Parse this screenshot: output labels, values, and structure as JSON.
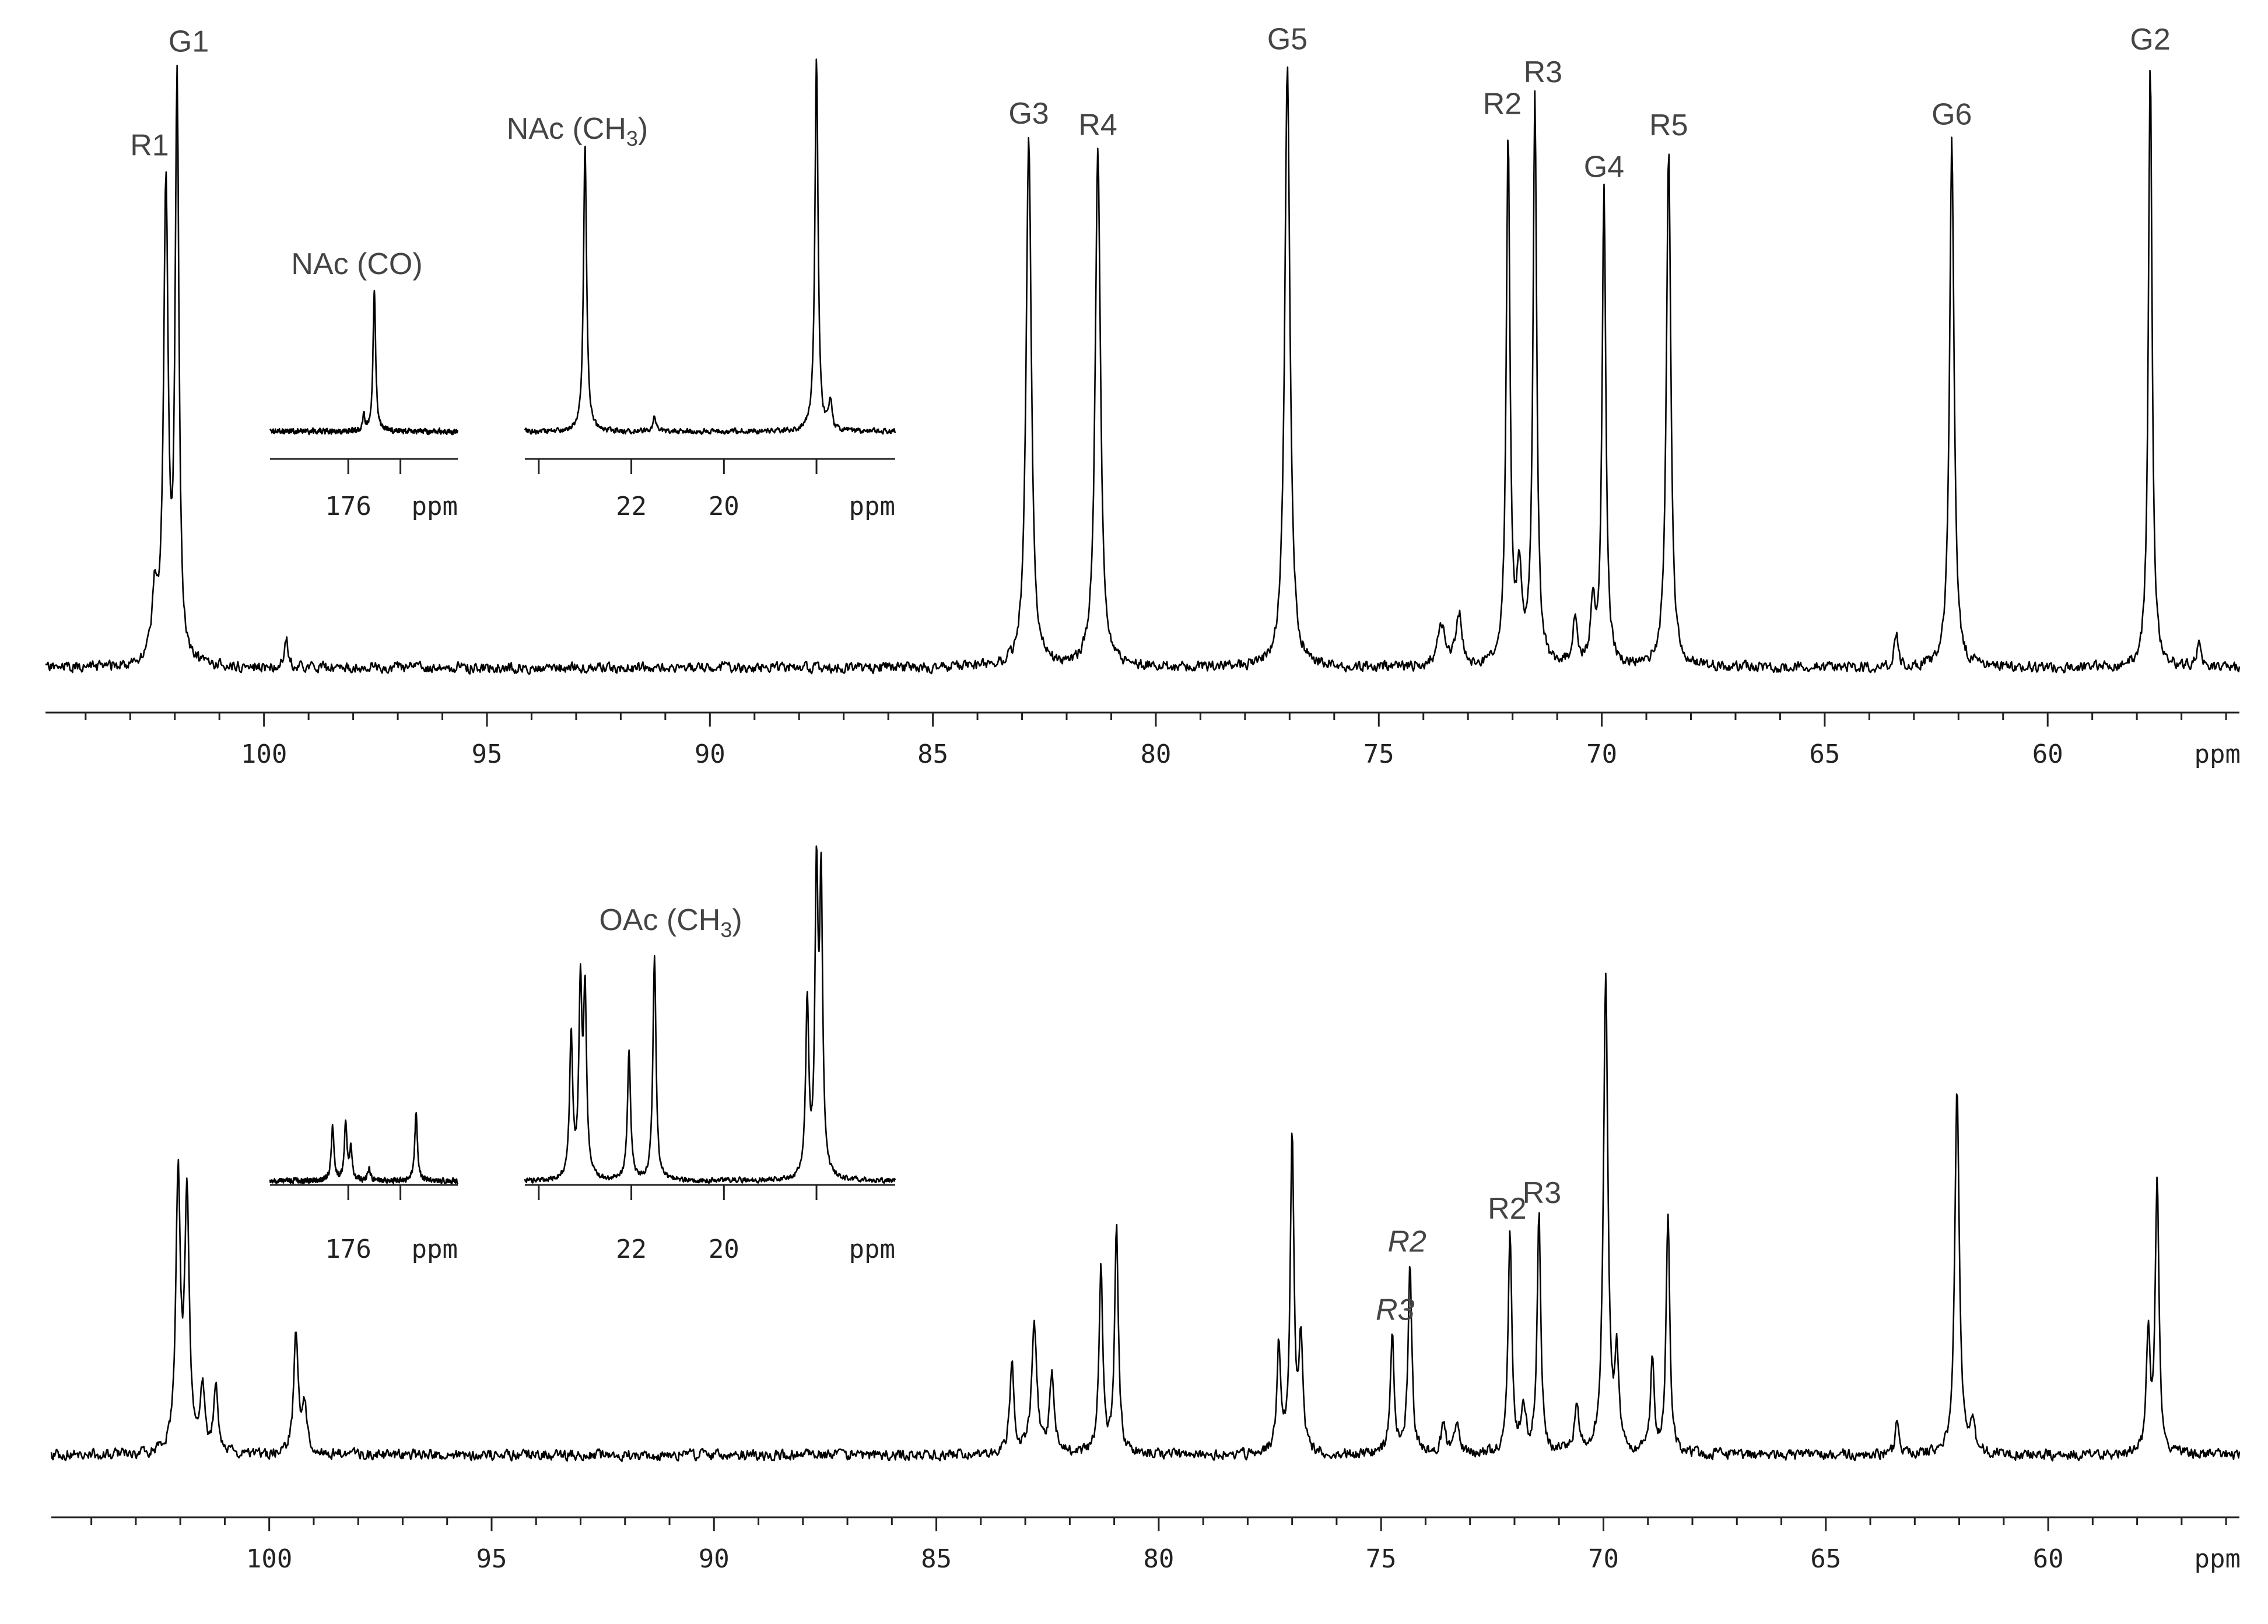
{
  "chart_data": [
    {
      "type": "line",
      "name": "top-spectrum",
      "xlabel": "ppm",
      "x_reversed": true,
      "xlim": [
        104.9,
        55.7
      ],
      "xticks": [
        100,
        95,
        90,
        85,
        80,
        75,
        70,
        65,
        60
      ],
      "peaks": [
        {
          "x": 102.2,
          "height": 0.82,
          "width": 0.06,
          "label": "R1"
        },
        {
          "x": 101.95,
          "height": 1.0,
          "width": 0.05,
          "label": "G1"
        },
        {
          "x": 102.45,
          "height": 0.12,
          "width": 0.07,
          "label": ""
        },
        {
          "x": 99.5,
          "height": 0.05,
          "width": 0.05,
          "label": ""
        },
        {
          "x": 82.85,
          "height": 0.92,
          "width": 0.07,
          "label": "G3"
        },
        {
          "x": 81.3,
          "height": 0.9,
          "width": 0.07,
          "label": "R4"
        },
        {
          "x": 77.05,
          "height": 1.05,
          "width": 0.07,
          "label": "G5"
        },
        {
          "x": 73.6,
          "height": 0.07,
          "width": 0.1,
          "label": ""
        },
        {
          "x": 73.2,
          "height": 0.09,
          "width": 0.08,
          "label": ""
        },
        {
          "x": 72.1,
          "height": 0.92,
          "width": 0.05,
          "label": "R2"
        },
        {
          "x": 71.85,
          "height": 0.14,
          "width": 0.07,
          "label": ""
        },
        {
          "x": 71.5,
          "height": 0.98,
          "width": 0.05,
          "label": "R3"
        },
        {
          "x": 70.6,
          "height": 0.08,
          "width": 0.06,
          "label": ""
        },
        {
          "x": 70.2,
          "height": 0.1,
          "width": 0.06,
          "label": ""
        },
        {
          "x": 69.95,
          "height": 0.82,
          "width": 0.05,
          "label": "G4"
        },
        {
          "x": 68.5,
          "height": 0.9,
          "width": 0.06,
          "label": "R5"
        },
        {
          "x": 63.4,
          "height": 0.06,
          "width": 0.05,
          "label": ""
        },
        {
          "x": 62.15,
          "height": 0.92,
          "width": 0.06,
          "label": "G6"
        },
        {
          "x": 57.7,
          "height": 1.05,
          "width": 0.05,
          "label": "G2"
        },
        {
          "x": 56.6,
          "height": 0.05,
          "width": 0.05,
          "label": ""
        }
      ],
      "insets": [
        {
          "name": "nac-co",
          "label_main": "NAc (CO)",
          "label_sub": "",
          "label_after": "",
          "xlim": [
            177.5,
            173.9
          ],
          "xticks": [
            176,
            175
          ],
          "tick_labels": [
            {
              "x": 176,
              "text": "176"
            }
          ],
          "unit": "ppm",
          "peaks": [
            {
              "x": 175.5,
              "height": 1.0,
              "width": 0.03
            },
            {
              "x": 175.7,
              "height": 0.1,
              "width": 0.03
            }
          ]
        },
        {
          "name": "nac-ch3",
          "label_main": "NAc (CH",
          "label_sub": "3",
          "label_after": ")",
          "xlim": [
            24.3,
            16.3
          ],
          "xticks": [
            24,
            22,
            20,
            18
          ],
          "tick_labels": [
            {
              "x": 22,
              "text": "22"
            },
            {
              "x": 20,
              "text": "20"
            }
          ],
          "unit": "ppm",
          "peaks": [
            {
              "x": 23.0,
              "height": 1.0,
              "width": 0.04
            },
            {
              "x": 21.5,
              "height": 0.05,
              "width": 0.04
            },
            {
              "x": 18.0,
              "height": 1.3,
              "width": 0.04
            },
            {
              "x": 17.7,
              "height": 0.1,
              "width": 0.04
            }
          ]
        }
      ]
    },
    {
      "type": "line",
      "name": "bottom-spectrum",
      "xlabel": "ppm",
      "x_reversed": true,
      "xlim": [
        104.9,
        55.7
      ],
      "xticks": [
        100,
        95,
        90,
        85,
        80,
        75,
        70,
        65,
        60
      ],
      "peaks": [
        {
          "x": 102.05,
          "height": 0.87,
          "width": 0.06,
          "label": ""
        },
        {
          "x": 101.85,
          "height": 0.8,
          "width": 0.06,
          "label": ""
        },
        {
          "x": 101.5,
          "height": 0.2,
          "width": 0.06,
          "label": ""
        },
        {
          "x": 101.2,
          "height": 0.2,
          "width": 0.06,
          "label": ""
        },
        {
          "x": 99.4,
          "height": 0.38,
          "width": 0.06,
          "label": ""
        },
        {
          "x": 99.2,
          "height": 0.15,
          "width": 0.06,
          "label": ""
        },
        {
          "x": 83.3,
          "height": 0.28,
          "width": 0.06,
          "label": ""
        },
        {
          "x": 82.8,
          "height": 0.42,
          "width": 0.07,
          "label": ""
        },
        {
          "x": 82.4,
          "height": 0.25,
          "width": 0.06,
          "label": ""
        },
        {
          "x": 81.3,
          "height": 0.6,
          "width": 0.05,
          "label": ""
        },
        {
          "x": 80.95,
          "height": 0.72,
          "width": 0.05,
          "label": ""
        },
        {
          "x": 77.3,
          "height": 0.35,
          "width": 0.05,
          "label": ""
        },
        {
          "x": 77.0,
          "height": 1.0,
          "width": 0.05,
          "label": ""
        },
        {
          "x": 76.8,
          "height": 0.35,
          "width": 0.05,
          "label": ""
        },
        {
          "x": 74.75,
          "height": 0.38,
          "width": 0.05,
          "label": "R3",
          "italic": true
        },
        {
          "x": 74.35,
          "height": 0.6,
          "width": 0.05,
          "label": "R2",
          "italic": true
        },
        {
          "x": 73.6,
          "height": 0.1,
          "width": 0.06,
          "label": ""
        },
        {
          "x": 73.3,
          "height": 0.1,
          "width": 0.06,
          "label": ""
        },
        {
          "x": 72.1,
          "height": 0.7,
          "width": 0.05,
          "label": "R2"
        },
        {
          "x": 71.8,
          "height": 0.15,
          "width": 0.06,
          "label": ""
        },
        {
          "x": 71.45,
          "height": 0.75,
          "width": 0.05,
          "label": "R3"
        },
        {
          "x": 70.6,
          "height": 0.15,
          "width": 0.06,
          "label": ""
        },
        {
          "x": 69.95,
          "height": 1.5,
          "width": 0.06,
          "label": ""
        },
        {
          "x": 69.7,
          "height": 0.3,
          "width": 0.05,
          "label": ""
        },
        {
          "x": 68.9,
          "height": 0.3,
          "width": 0.05,
          "label": ""
        },
        {
          "x": 68.55,
          "height": 0.76,
          "width": 0.05,
          "label": ""
        },
        {
          "x": 63.4,
          "height": 0.1,
          "width": 0.05,
          "label": ""
        },
        {
          "x": 62.05,
          "height": 1.15,
          "width": 0.06,
          "label": ""
        },
        {
          "x": 61.7,
          "height": 0.1,
          "width": 0.06,
          "label": ""
        },
        {
          "x": 57.75,
          "height": 0.38,
          "width": 0.05,
          "label": ""
        },
        {
          "x": 57.55,
          "height": 0.88,
          "width": 0.05,
          "label": ""
        }
      ],
      "insets": [
        {
          "name": "oac-co",
          "label_main": "",
          "label_sub": "",
          "label_after": "",
          "xlim": [
            177.5,
            173.9
          ],
          "xticks": [
            176,
            175
          ],
          "tick_labels": [
            {
              "x": 176,
              "text": "176"
            }
          ],
          "unit": "ppm",
          "peaks": [
            {
              "x": 176.3,
              "height": 0.7,
              "width": 0.03
            },
            {
              "x": 176.05,
              "height": 0.75,
              "width": 0.03
            },
            {
              "x": 175.95,
              "height": 0.4,
              "width": 0.03
            },
            {
              "x": 175.6,
              "height": 0.15,
              "width": 0.03
            },
            {
              "x": 174.7,
              "height": 0.9,
              "width": 0.03
            }
          ]
        },
        {
          "name": "oac-ch3",
          "label_main": "OAc (CH",
          "label_sub": "3",
          "label_after": ")",
          "xlim": [
            24.3,
            16.3
          ],
          "xticks": [
            24,
            22,
            20,
            18
          ],
          "tick_labels": [
            {
              "x": 22,
              "text": "22"
            },
            {
              "x": 20,
              "text": "20"
            }
          ],
          "unit": "ppm",
          "peaks": [
            {
              "x": 23.3,
              "height": 0.48,
              "width": 0.04
            },
            {
              "x": 23.1,
              "height": 0.62,
              "width": 0.04
            },
            {
              "x": 23.0,
              "height": 0.6,
              "width": 0.04
            },
            {
              "x": 22.05,
              "height": 0.44,
              "width": 0.04
            },
            {
              "x": 21.5,
              "height": 0.75,
              "width": 0.04
            },
            {
              "x": 18.2,
              "height": 0.58,
              "width": 0.04
            },
            {
              "x": 18.0,
              "height": 0.98,
              "width": 0.04
            },
            {
              "x": 17.9,
              "height": 0.95,
              "width": 0.04
            }
          ]
        }
      ]
    }
  ]
}
